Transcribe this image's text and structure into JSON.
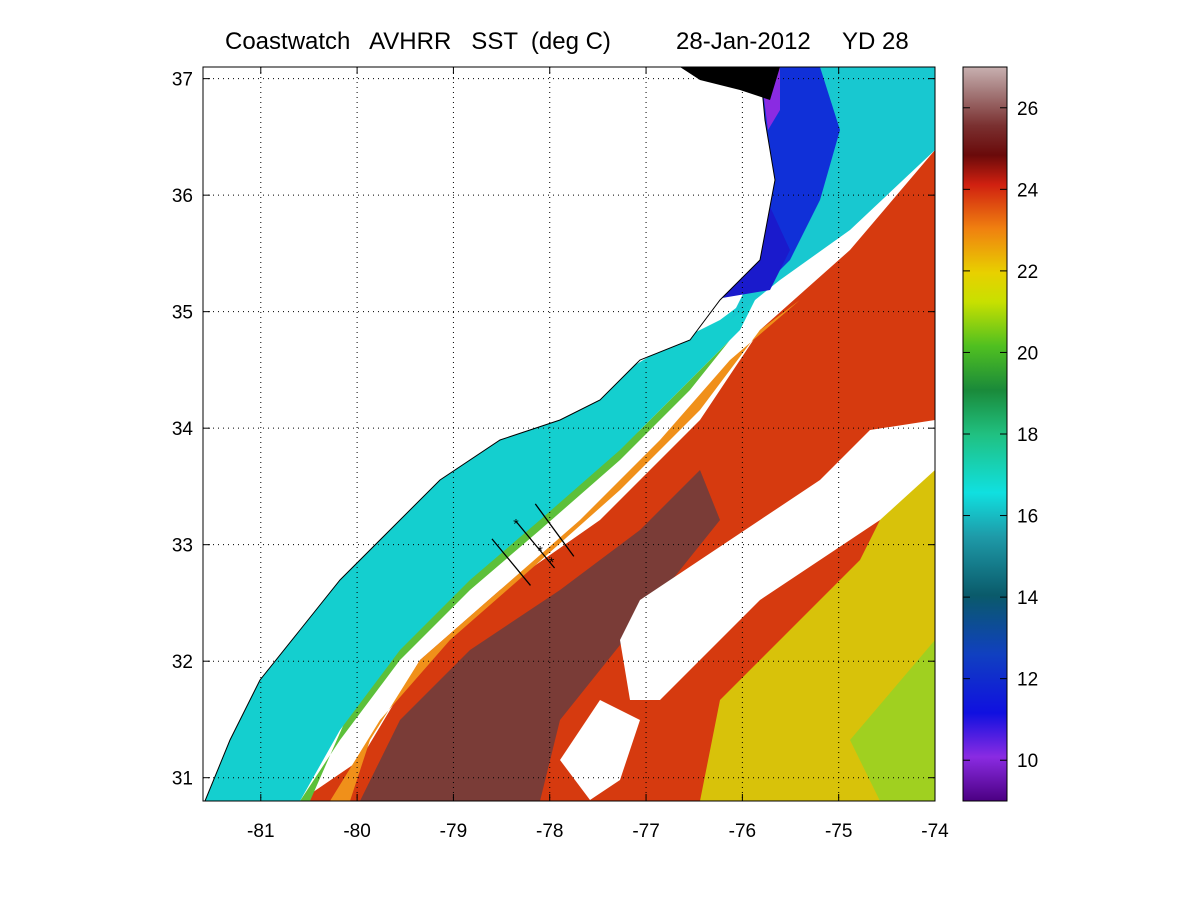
{
  "title": {
    "left": "Coastwatch   AVHRR   SST  (deg C)",
    "date": "28-Jan-2012",
    "yearday": "YD 28"
  },
  "map": {
    "lon_range": [
      -81.6,
      -74
    ],
    "lat_range": [
      30.8,
      37.1
    ],
    "x_ticks": [
      "-81",
      "-80",
      "-79",
      "-78",
      "-77",
      "-76",
      "-75",
      "-74"
    ],
    "y_ticks": [
      "31",
      "32",
      "33",
      "34",
      "35",
      "36",
      "37"
    ],
    "grid": "dotted",
    "transects": [
      {
        "from": [
          -78.6,
          33.05
        ],
        "to": [
          -78.2,
          32.65
        ]
      },
      {
        "from": [
          -78.35,
          33.2
        ],
        "to": [
          -77.95,
          32.8
        ]
      },
      {
        "from": [
          -78.15,
          33.35
        ],
        "to": [
          -77.75,
          32.9
        ]
      }
    ],
    "stations": [
      [
        -78.35,
        33.18
      ],
      [
        -78.1,
        32.95
      ],
      [
        -77.98,
        32.85
      ]
    ]
  },
  "colorbar": {
    "range": [
      9,
      27
    ],
    "ticks": [
      "10",
      "12",
      "14",
      "16",
      "18",
      "20",
      "22",
      "24",
      "26"
    ]
  },
  "colors": {
    "cold": "#4b0082",
    "cool": "#00bcd4",
    "warm": "#d63a0f",
    "gulf_stream": "#7a3c37",
    "land": "#ffffff"
  }
}
